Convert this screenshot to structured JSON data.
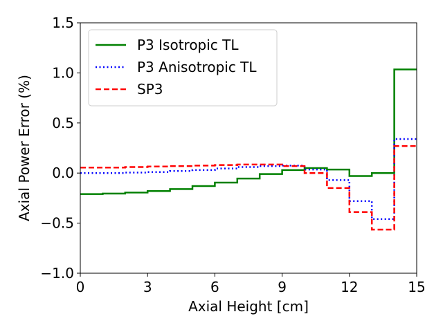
{
  "chart_data": {
    "type": "line",
    "drawstyle": "steps-post",
    "title": "",
    "xlabel": "Axial Height [cm]",
    "ylabel": "Axial Power Error (%)",
    "xlim": [
      0,
      15
    ],
    "ylim": [
      -1.0,
      1.5
    ],
    "xticks": [
      0,
      3,
      6,
      9,
      12,
      15
    ],
    "xtick_labels": [
      "0",
      "3",
      "6",
      "9",
      "12",
      "15"
    ],
    "yticks": [
      -1.0,
      -0.5,
      0.0,
      0.5,
      1.0,
      1.5
    ],
    "ytick_labels": [
      "−1.0",
      "−0.5",
      "0.0",
      "0.5",
      "1.0",
      "1.5"
    ],
    "grid": false,
    "legend_position": "upper-left",
    "x": [
      0,
      1,
      2,
      3,
      4,
      5,
      6,
      7,
      8,
      9,
      10,
      11,
      12,
      13,
      14
    ],
    "series": [
      {
        "name": "P3 Isotropic TL",
        "color": "#008000",
        "linestyle": "solid",
        "values": [
          -0.21,
          -0.205,
          -0.195,
          -0.18,
          -0.16,
          -0.13,
          -0.095,
          -0.055,
          -0.01,
          0.03,
          0.05,
          0.035,
          -0.03,
          0.0,
          1.035
        ]
      },
      {
        "name": "P3 Anisotropic TL",
        "color": "#0000ff",
        "linestyle": "dotted",
        "values": [
          0.0,
          0.0,
          0.005,
          0.01,
          0.02,
          0.03,
          0.045,
          0.06,
          0.07,
          0.075,
          0.035,
          -0.07,
          -0.28,
          -0.46,
          0.34
        ]
      },
      {
        "name": "SP3",
        "color": "#ff0000",
        "linestyle": "dashed",
        "values": [
          0.055,
          0.055,
          0.06,
          0.065,
          0.07,
          0.075,
          0.08,
          0.085,
          0.085,
          0.07,
          0.0,
          -0.15,
          -0.39,
          -0.565,
          0.27
        ]
      }
    ]
  }
}
